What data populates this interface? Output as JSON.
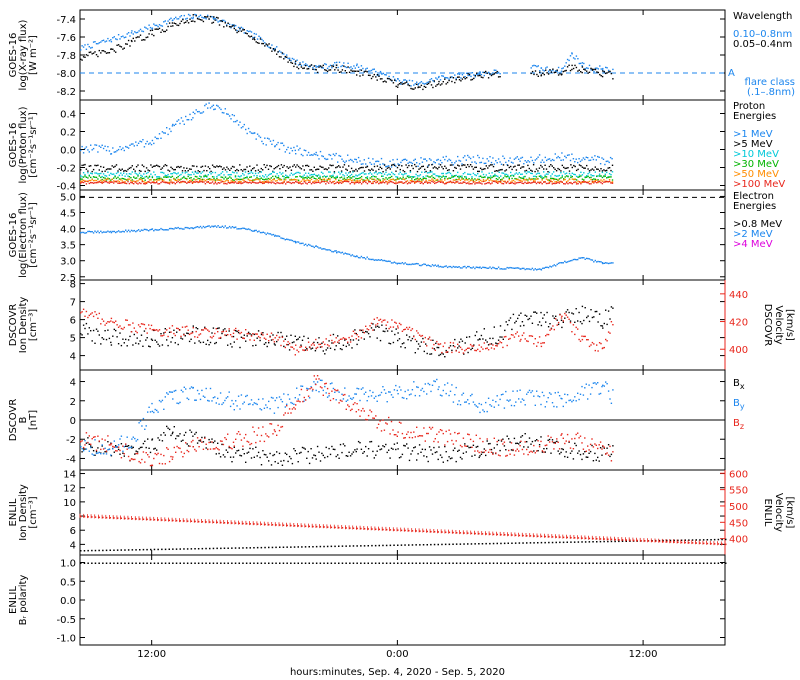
{
  "x_axis": {
    "label": "hours:minutes, Sep.  4, 2020 - Sep.  5, 2020",
    "ticks": [
      {
        "hour": 12,
        "label": "12:00"
      },
      {
        "hour": 24,
        "label": "0:00"
      },
      {
        "hour": 36,
        "label": "12:00"
      }
    ],
    "range_hours": [
      8.5,
      40
    ]
  },
  "colors": {
    "black": "#000000",
    "blue": "#1c86ee",
    "cyan": "#00c8d8",
    "green": "#00b400",
    "orange": "#ff8c00",
    "red": "#e8261c",
    "magenta": "#dd00dd"
  },
  "chart_data": [
    {
      "id": "xray",
      "type": "scatter",
      "ylabel": [
        "GOES-16",
        "log(X-ray flux)",
        "[W m⁻²]"
      ],
      "ylim": [
        -8.3,
        -7.3
      ],
      "yticks": [
        {
          "v": -8.2,
          "l": "-8.2"
        },
        {
          "v": -8.0,
          "l": "-8.0"
        },
        {
          "v": -7.8,
          "l": "-7.8"
        },
        {
          "v": -7.6,
          "l": "-7.6"
        },
        {
          "v": -7.4,
          "l": "-7.4"
        }
      ],
      "legend_title": "Wavelength",
      "legend": [
        {
          "text": "0.10–0.8nm",
          "color": "#1c86ee"
        },
        {
          "text": "0.05–0.4nm",
          "color": "#000000"
        }
      ],
      "reference_line": {
        "y": -8.0,
        "label": "A",
        "color": "#1c86ee"
      },
      "annotation": [
        "flare class",
        "(.1–.8nm)"
      ],
      "series": [
        {
          "color": "#1c86ee",
          "noise": 0.03,
          "x": [
            8.5,
            10,
            11,
            12,
            13,
            14,
            15,
            16,
            17,
            18,
            19,
            20,
            21,
            22,
            23,
            24,
            25,
            26,
            27,
            28,
            29,
            29.5,
            30.5,
            31,
            32,
            32.5,
            33,
            33.5,
            34,
            34.5
          ],
          "y": [
            -7.72,
            -7.62,
            -7.55,
            -7.48,
            -7.4,
            -7.36,
            -7.38,
            -7.48,
            -7.58,
            -7.72,
            -7.87,
            -7.93,
            -7.9,
            -7.92,
            -7.99,
            -8.08,
            -8.12,
            -8.05,
            -8.02,
            -8.0,
            -7.98,
            null,
            -7.92,
            -7.95,
            -7.96,
            -7.78,
            -7.9,
            -7.95,
            -7.94,
            -7.98
          ]
        },
        {
          "color": "#000000",
          "noise": 0.04,
          "x": [
            8.5,
            10,
            11,
            12,
            13,
            14,
            15,
            16,
            17,
            18,
            19,
            20,
            21,
            22,
            23,
            24,
            25,
            26,
            27,
            28,
            29,
            29.5,
            30.5,
            31,
            32,
            32.5,
            33,
            33.5,
            34,
            34.5
          ],
          "y": [
            -7.82,
            -7.75,
            -7.65,
            -7.55,
            -7.46,
            -7.38,
            -7.4,
            -7.5,
            -7.6,
            -7.75,
            -7.9,
            -7.95,
            -7.94,
            -7.98,
            -8.05,
            -8.12,
            -8.15,
            -8.1,
            -8.05,
            -8.02,
            -8.0,
            null,
            -7.98,
            -8.0,
            -7.98,
            -7.92,
            -7.95,
            -7.97,
            -8.0,
            -8.02
          ]
        }
      ]
    },
    {
      "id": "proton",
      "type": "scatter",
      "ylabel": [
        "GOES-16",
        "log(Proton flux)",
        "[cm⁻²s⁻¹sr⁻¹]"
      ],
      "ylim": [
        -0.45,
        0.55
      ],
      "yticks": [
        {
          "v": -0.4,
          "l": "-0.4"
        },
        {
          "v": -0.2,
          "l": "-0.2"
        },
        {
          "v": 0.0,
          "l": "0.0"
        },
        {
          "v": 0.2,
          "l": "0.2"
        },
        {
          "v": 0.4,
          "l": "0.4"
        }
      ],
      "legend_title": [
        "Proton",
        "Energies"
      ],
      "legend": [
        {
          "text": ">1 MeV",
          "color": "#1c86ee"
        },
        {
          "text": ">5 MeV",
          "color": "#000000"
        },
        {
          "text": ">10 MeV",
          "color": "#00c8d8"
        },
        {
          "text": ">30 MeV",
          "color": "#00b400"
        },
        {
          "text": ">50 MeV",
          "color": "#ff8c00"
        },
        {
          "text": ">100 MeV",
          "color": "#e8261c"
        }
      ],
      "series": [
        {
          "color": "#1c86ee",
          "noise": 0.05,
          "x": [
            8.5,
            10,
            12,
            13,
            14,
            15,
            16,
            17,
            18,
            19,
            20,
            22,
            24,
            26,
            28,
            30,
            32,
            34.5
          ],
          "y": [
            0.02,
            0.0,
            0.1,
            0.25,
            0.4,
            0.5,
            0.35,
            0.15,
            0.05,
            0.0,
            -0.05,
            -0.12,
            -0.15,
            -0.12,
            -0.1,
            -0.12,
            -0.08,
            -0.12
          ]
        },
        {
          "color": "#000000",
          "noise": 0.04,
          "x": [
            8.5,
            34.5
          ],
          "y": [
            -0.2,
            -0.2
          ]
        },
        {
          "color": "#00c8d8",
          "noise": 0.03,
          "x": [
            8.5,
            34.5
          ],
          "y": [
            -0.27,
            -0.27
          ]
        },
        {
          "color": "#00b400",
          "noise": 0.025,
          "x": [
            8.5,
            34.5
          ],
          "y": [
            -0.31,
            -0.31
          ]
        },
        {
          "color": "#ff8c00",
          "noise": 0.02,
          "x": [
            8.5,
            34.5
          ],
          "y": [
            -0.34,
            -0.34
          ]
        },
        {
          "color": "#e8261c",
          "noise": 0.015,
          "x": [
            8.5,
            34.5
          ],
          "y": [
            -0.36,
            -0.36
          ]
        }
      ]
    },
    {
      "id": "electron",
      "type": "scatter",
      "ylabel": [
        "GOES-16",
        "log(Electron flux)",
        "[cm⁻²s⁻¹sr⁻¹]"
      ],
      "ylim": [
        2.4,
        5.2
      ],
      "yticks": [
        {
          "v": 2.5,
          "l": "2.5"
        },
        {
          "v": 3.0,
          "l": "3.0"
        },
        {
          "v": 3.5,
          "l": "3.5"
        },
        {
          "v": 4.0,
          "l": "4.0"
        },
        {
          "v": 4.5,
          "l": "4.5"
        },
        {
          "v": 5.0,
          "l": "5.0"
        }
      ],
      "legend_title": [
        "Electron",
        "Energies"
      ],
      "legend": [
        {
          "text": ">0.8 MeV",
          "color": "#000000"
        },
        {
          "text": ">2 MeV",
          "color": "#1c86ee"
        },
        {
          "text": ">4 MeV",
          "color": "#dd00dd"
        }
      ],
      "reference_line": {
        "y": 4.97,
        "label": "",
        "color": "#000000"
      },
      "series": [
        {
          "color": "#1c86ee",
          "noise": 0.03,
          "x": [
            8.5,
            10,
            12,
            14,
            15,
            16,
            17,
            18,
            19,
            20,
            21,
            22,
            24,
            26,
            28,
            30,
            31,
            32,
            33,
            34,
            34.5
          ],
          "y": [
            3.9,
            3.92,
            3.98,
            4.05,
            4.1,
            4.05,
            3.95,
            3.8,
            3.6,
            3.45,
            3.3,
            3.15,
            2.95,
            2.85,
            2.8,
            2.78,
            2.75,
            2.95,
            3.1,
            2.95,
            2.95
          ]
        }
      ]
    },
    {
      "id": "dscovr-density",
      "type": "scatter",
      "ylabel": [
        "DSCOVR",
        "Ion Density",
        "[cm⁻³]"
      ],
      "ylim": [
        3.2,
        8.2
      ],
      "yticks": [
        {
          "v": 4,
          "l": "4"
        },
        {
          "v": 5,
          "l": "5"
        },
        {
          "v": 6,
          "l": "6"
        },
        {
          "v": 7,
          "l": "7"
        },
        {
          "v": 8,
          "l": "8"
        }
      ],
      "y2label": [
        "DSCOVR",
        "Velocity",
        "[km/s]"
      ],
      "y2lim": [
        385,
        450
      ],
      "y2ticks": [
        {
          "v": 400,
          "l": "400"
        },
        {
          "v": 420,
          "l": "420"
        },
        {
          "v": 440,
          "l": "440"
        }
      ],
      "series": [
        {
          "color": "#000000",
          "noise": 0.5,
          "x": [
            8.5,
            10,
            12,
            14,
            16,
            18,
            20,
            22,
            23,
            24,
            25,
            26,
            27,
            28,
            29,
            30,
            31,
            32,
            33,
            34,
            34.5
          ],
          "y": [
            5.4,
            5.0,
            5.0,
            5.2,
            5.0,
            4.9,
            4.5,
            5.0,
            5.4,
            5.0,
            4.6,
            4.4,
            4.5,
            5.0,
            5.2,
            6.2,
            6.0,
            6.1,
            6.3,
            6.0,
            6.4
          ]
        },
        {
          "color": "#e8261c",
          "axis": "right",
          "noise": 4,
          "x": [
            8.5,
            10,
            12,
            14,
            16,
            18,
            19,
            20,
            22,
            23,
            24,
            26,
            28,
            30,
            31,
            32,
            33,
            34,
            34.5
          ],
          "y": [
            428,
            420,
            414,
            413,
            412,
            408,
            400,
            405,
            410,
            420,
            418,
            402,
            400,
            410,
            405,
            425,
            408,
            400,
            420
          ]
        }
      ]
    },
    {
      "id": "dscovr-b",
      "type": "scatter",
      "ylabel": [
        "DSCOVR",
        "B",
        "[nT]"
      ],
      "ylim": [
        -5.2,
        5.2
      ],
      "yticks": [
        {
          "v": -4,
          "l": "-4"
        },
        {
          "v": -2,
          "l": "-2"
        },
        {
          "v": 0,
          "l": "0"
        },
        {
          "v": 2,
          "l": "2"
        },
        {
          "v": 4,
          "l": "4"
        }
      ],
      "zero_line": true,
      "legend": [
        {
          "text": "B",
          "sub": "x",
          "color": "#000000"
        },
        {
          "text": "B",
          "sub": "y",
          "color": "#1c86ee"
        },
        {
          "text": "B",
          "sub": "z",
          "color": "#e8261c"
        }
      ],
      "series": [
        {
          "color": "#000000",
          "noise": 0.9,
          "x": [
            8.5,
            10,
            11,
            12,
            13,
            14,
            16,
            18,
            20,
            22,
            24,
            26,
            28,
            30,
            32,
            34,
            34.5
          ],
          "y": [
            -2.5,
            -3.0,
            -3.5,
            -2.5,
            -1.0,
            -2.0,
            -3.5,
            -3.8,
            -3.5,
            -3.0,
            -3.2,
            -3.5,
            -3.2,
            -2.0,
            -3.0,
            -3.5,
            -3.0
          ]
        },
        {
          "color": "#1c86ee",
          "noise": 0.9,
          "x": [
            8.5,
            10,
            11,
            12,
            13,
            14,
            16,
            18,
            20,
            22,
            24,
            26,
            28,
            30,
            32,
            34,
            34.5
          ],
          "y": [
            -2.5,
            -3.0,
            -2.0,
            1.0,
            2.5,
            3.0,
            2.0,
            1.5,
            3.5,
            2.5,
            3.0,
            3.5,
            1.5,
            2.5,
            2.0,
            3.5,
            2.5
          ]
        },
        {
          "color": "#e8261c",
          "noise": 0.9,
          "x": [
            8.5,
            10,
            11,
            12,
            13,
            14,
            16,
            18,
            19,
            20,
            22,
            24,
            26,
            28,
            30,
            32,
            34,
            34.5
          ],
          "y": [
            -2.0,
            -2.5,
            -3.5,
            -4.0,
            -3.5,
            -2.5,
            -2.0,
            -1.0,
            2.0,
            4.0,
            1.0,
            -1.0,
            -1.5,
            -2.5,
            -3.0,
            -2.0,
            -2.5,
            -3.5
          ]
        }
      ]
    },
    {
      "id": "enlil-density",
      "type": "scatter",
      "ylabel": [
        "ENLIL",
        "Ion Density",
        "[cm⁻³]"
      ],
      "ylim": [
        2.5,
        14.5
      ],
      "yticks": [
        {
          "v": 4,
          "l": "4"
        },
        {
          "v": 6,
          "l": "6"
        },
        {
          "v": 8,
          "l": "8"
        },
        {
          "v": 10,
          "l": "10"
        },
        {
          "v": 12,
          "l": "12"
        },
        {
          "v": 14,
          "l": "14"
        }
      ],
      "y2label": [
        "ENLIL",
        "Velocity",
        "[km/s]"
      ],
      "y2lim": [
        350,
        610
      ],
      "y2ticks": [
        {
          "v": 400,
          "l": "400"
        },
        {
          "v": 450,
          "l": "450"
        },
        {
          "v": 500,
          "l": "500"
        },
        {
          "v": 550,
          "l": "550"
        },
        {
          "v": 600,
          "l": "600"
        }
      ],
      "series": [
        {
          "color": "#000000",
          "noise": 0,
          "x": [
            8.5,
            40
          ],
          "y": [
            3.2,
            4.8
          ]
        },
        {
          "color": "#e8261c",
          "axis": "right",
          "noise": 0,
          "x": [
            8.5,
            40
          ],
          "y": [
            470,
            385
          ]
        }
      ]
    },
    {
      "id": "enlil-polarity",
      "type": "scatter",
      "ylabel": [
        "ENLIL",
        "Bᵣ polarity"
      ],
      "ylim": [
        -1.2,
        1.2
      ],
      "yticks": [
        {
          "v": -1.0,
          "l": "-1.0"
        },
        {
          "v": -0.5,
          "l": "-0.5"
        },
        {
          "v": 0.0,
          "l": "0.0"
        },
        {
          "v": 0.5,
          "l": "0.5"
        },
        {
          "v": 1.0,
          "l": "1.0"
        }
      ],
      "series": [
        {
          "color": "#000000",
          "noise": 0,
          "x": [
            8.5,
            40
          ],
          "y": [
            1.0,
            1.0
          ]
        }
      ]
    }
  ]
}
